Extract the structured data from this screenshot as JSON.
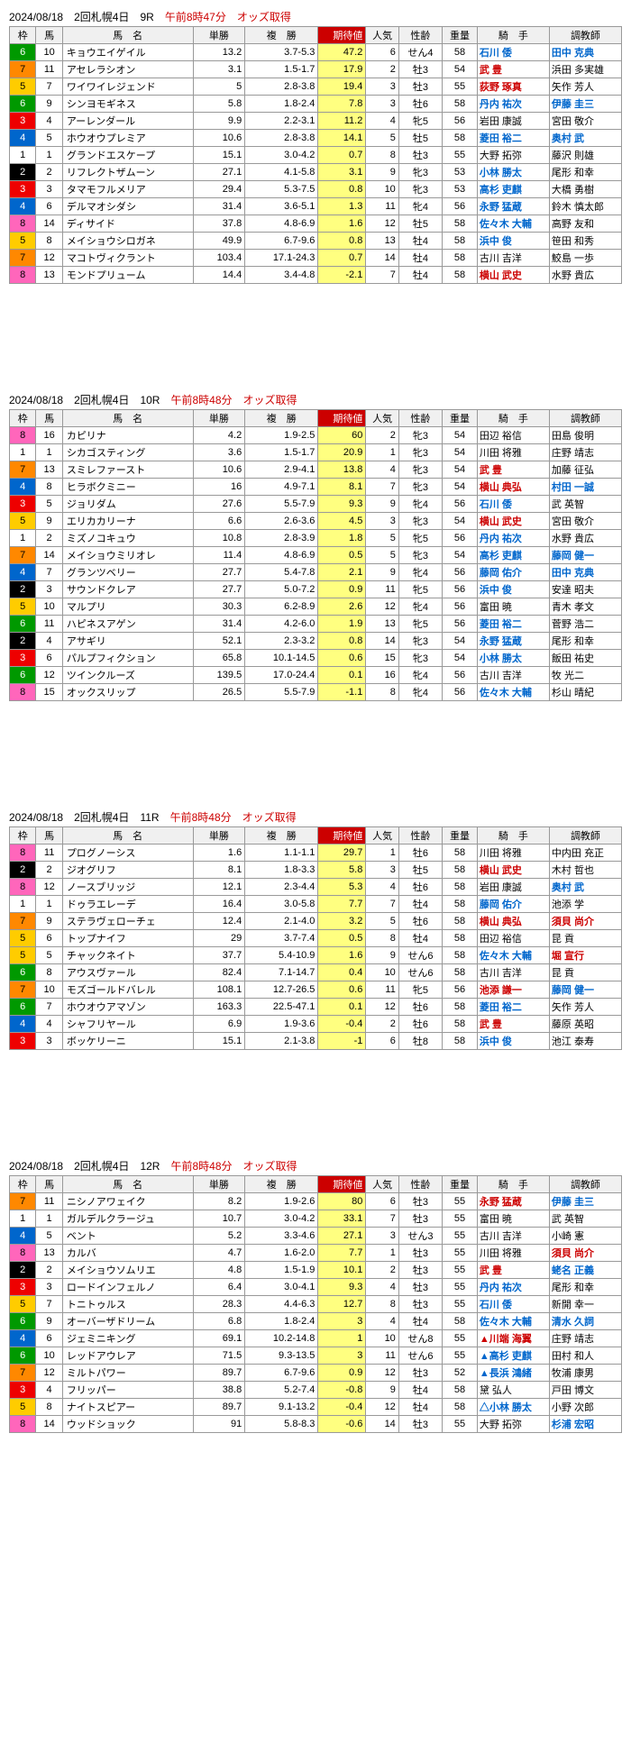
{
  "races": [
    {
      "header": {
        "date": "2024/08/18",
        "meet": "2回札幌4日",
        "race": "9R",
        "time": "午前8時47分",
        "label": "オッズ取得"
      },
      "rows": [
        {
          "waku": 6,
          "uma": 10,
          "name": "キョウエイゲイル",
          "tansho": "13.2",
          "fukusho": "3.7-5.3",
          "expect": "47.2",
          "ninki": 6,
          "seirei": "せん4",
          "juryo": 58,
          "kishu": "石川 倭",
          "choukyou": "田中 克典",
          "kh": 1,
          "ch": 1
        },
        {
          "waku": 7,
          "uma": 11,
          "name": "アセレラシオン",
          "tansho": "3.1",
          "fukusho": "1.5-1.7",
          "expect": "17.9",
          "ninki": 2,
          "seirei": "牡3",
          "juryo": 54,
          "kishu": "武 豊",
          "choukyou": "浜田 多実雄",
          "kh": 2
        },
        {
          "waku": 5,
          "uma": 7,
          "name": "ワイワイレジェンド",
          "tansho": "5",
          "fukusho": "2.8-3.8",
          "expect": "19.4",
          "ninki": 3,
          "seirei": "牡3",
          "juryo": 55,
          "kishu": "荻野 琢真",
          "choukyou": "矢作 芳人",
          "kh": 2
        },
        {
          "waku": 6,
          "uma": 9,
          "name": "シンヨモギネス",
          "tansho": "5.8",
          "fukusho": "1.8-2.4",
          "expect": "7.8",
          "ninki": 3,
          "seirei": "牡6",
          "juryo": 58,
          "kishu": "丹内 祐次",
          "choukyou": "伊藤 圭三",
          "kh": 1,
          "ch": 1
        },
        {
          "waku": 3,
          "uma": 4,
          "name": "アーレンダール",
          "tansho": "9.9",
          "fukusho": "2.2-3.1",
          "expect": "11.2",
          "ninki": 4,
          "seirei": "牝5",
          "juryo": 56,
          "kishu": "岩田 康誠",
          "choukyou": "宮田 敬介"
        },
        {
          "waku": 4,
          "uma": 5,
          "name": "ホウオウプレミア",
          "tansho": "10.6",
          "fukusho": "2.8-3.8",
          "expect": "14.1",
          "ninki": 5,
          "seirei": "牡5",
          "juryo": 58,
          "kishu": "菱田 裕二",
          "choukyou": "奥村 武",
          "kh": 1,
          "ch": 1
        },
        {
          "waku": 1,
          "uma": 1,
          "name": "グランドエスケープ",
          "tansho": "15.1",
          "fukusho": "3.0-4.2",
          "expect": "0.7",
          "ninki": 8,
          "seirei": "牡3",
          "juryo": 55,
          "kishu": "大野 拓弥",
          "choukyou": "藤沢 則雄"
        },
        {
          "waku": 2,
          "uma": 2,
          "name": "リフレクトザムーン",
          "tansho": "27.1",
          "fukusho": "4.1-5.8",
          "expect": "3.1",
          "ninki": 9,
          "seirei": "牝3",
          "juryo": 53,
          "kishu": "小林 勝太",
          "choukyou": "尾形 和幸",
          "kh": 1
        },
        {
          "waku": 3,
          "uma": 3,
          "name": "タマモフルメリア",
          "tansho": "29.4",
          "fukusho": "5.3-7.5",
          "expect": "0.8",
          "ninki": 10,
          "seirei": "牝3",
          "juryo": 53,
          "kishu": "高杉 吏麒",
          "choukyou": "大橋 勇樹",
          "kh": 1
        },
        {
          "waku": 4,
          "uma": 6,
          "name": "デルマオシダシ",
          "tansho": "31.4",
          "fukusho": "3.6-5.1",
          "expect": "1.3",
          "ninki": 11,
          "seirei": "牝4",
          "juryo": 56,
          "kishu": "永野 猛蔵",
          "choukyou": "鈴木 慎太郎",
          "kh": 1
        },
        {
          "waku": 8,
          "uma": 14,
          "name": "ディサイド",
          "tansho": "37.8",
          "fukusho": "4.8-6.9",
          "expect": "1.6",
          "ninki": 12,
          "seirei": "牡5",
          "juryo": 58,
          "kishu": "佐々木 大輔",
          "choukyou": "高野 友和",
          "kh": 1
        },
        {
          "waku": 5,
          "uma": 8,
          "name": "メイショウシロガネ",
          "tansho": "49.9",
          "fukusho": "6.7-9.6",
          "expect": "0.8",
          "ninki": 13,
          "seirei": "牡4",
          "juryo": 58,
          "kishu": "浜中 俊",
          "choukyou": "笹田 和秀",
          "kh": 1
        },
        {
          "waku": 7,
          "uma": 12,
          "name": "マコトヴィクラント",
          "tansho": "103.4",
          "fukusho": "17.1-24.3",
          "expect": "0.7",
          "ninki": 14,
          "seirei": "牡4",
          "juryo": 58,
          "kishu": "古川 吉洋",
          "choukyou": "鮫島 一歩"
        },
        {
          "waku": 8,
          "uma": 13,
          "name": "モンドプリューム",
          "tansho": "14.4",
          "fukusho": "3.4-4.8",
          "expect": "-2.1",
          "ninki": 7,
          "seirei": "牡4",
          "juryo": 58,
          "kishu": "横山 武史",
          "choukyou": "水野 貴広",
          "kh": 2
        }
      ]
    },
    {
      "header": {
        "date": "2024/08/18",
        "meet": "2回札幌4日",
        "race": "10R",
        "time": "午前8時48分",
        "label": "オッズ取得"
      },
      "rows": [
        {
          "waku": 8,
          "uma": 16,
          "name": "カピリナ",
          "tansho": "4.2",
          "fukusho": "1.9-2.5",
          "expect": "60",
          "ninki": 2,
          "seirei": "牝3",
          "juryo": 54,
          "kishu": "田辺 裕信",
          "choukyou": "田島 俊明"
        },
        {
          "waku": 1,
          "uma": 1,
          "name": "シカゴスティング",
          "tansho": "3.6",
          "fukusho": "1.5-1.7",
          "expect": "20.9",
          "ninki": 1,
          "seirei": "牝3",
          "juryo": 54,
          "kishu": "川田 将雅",
          "choukyou": "庄野 靖志"
        },
        {
          "waku": 7,
          "uma": 13,
          "name": "スミレファースト",
          "tansho": "10.6",
          "fukusho": "2.9-4.1",
          "expect": "13.8",
          "ninki": 4,
          "seirei": "牝3",
          "juryo": 54,
          "kishu": "武 豊",
          "choukyou": "加藤 征弘",
          "kh": 2
        },
        {
          "waku": 4,
          "uma": 8,
          "name": "ヒラボクミニー",
          "tansho": "16",
          "fukusho": "4.9-7.1",
          "expect": "8.1",
          "ninki": 7,
          "seirei": "牝3",
          "juryo": 54,
          "kishu": "横山 典弘",
          "choukyou": "村田 一誠",
          "kh": 2,
          "ch": 1
        },
        {
          "waku": 3,
          "uma": 5,
          "name": "ジョリダム",
          "tansho": "27.6",
          "fukusho": "5.5-7.9",
          "expect": "9.3",
          "ninki": 9,
          "seirei": "牝4",
          "juryo": 56,
          "kishu": "石川 倭",
          "choukyou": "武 英智",
          "kh": 1
        },
        {
          "waku": 5,
          "uma": 9,
          "name": "エリカカリーナ",
          "tansho": "6.6",
          "fukusho": "2.6-3.6",
          "expect": "4.5",
          "ninki": 3,
          "seirei": "牝3",
          "juryo": 54,
          "kishu": "横山 武史",
          "choukyou": "宮田 敬介",
          "kh": 2
        },
        {
          "waku": 1,
          "uma": 2,
          "name": "ミズノコキュウ",
          "tansho": "10.8",
          "fukusho": "2.8-3.9",
          "expect": "1.8",
          "ninki": 5,
          "seirei": "牝5",
          "juryo": 56,
          "kishu": "丹内 祐次",
          "choukyou": "水野 貴広",
          "kh": 1
        },
        {
          "waku": 7,
          "uma": 14,
          "name": "メイショウミリオレ",
          "tansho": "11.4",
          "fukusho": "4.8-6.9",
          "expect": "0.5",
          "ninki": 5,
          "seirei": "牝3",
          "juryo": 54,
          "kishu": "高杉 吏麒",
          "choukyou": "藤岡 健一",
          "kh": 1,
          "ch": 1
        },
        {
          "waku": 4,
          "uma": 7,
          "name": "グランツベリー",
          "tansho": "27.7",
          "fukusho": "5.4-7.8",
          "expect": "2.1",
          "ninki": 9,
          "seirei": "牝4",
          "juryo": 56,
          "kishu": "藤岡 佑介",
          "choukyou": "田中 克典",
          "kh": 1,
          "ch": 1
        },
        {
          "waku": 2,
          "uma": 3,
          "name": "サウンドクレア",
          "tansho": "27.7",
          "fukusho": "5.0-7.2",
          "expect": "0.9",
          "ninki": 11,
          "seirei": "牝5",
          "juryo": 56,
          "kishu": "浜中 俊",
          "choukyou": "安達 昭夫",
          "kh": 1
        },
        {
          "waku": 5,
          "uma": 10,
          "name": "マルプリ",
          "tansho": "30.3",
          "fukusho": "6.2-8.9",
          "expect": "2.6",
          "ninki": 12,
          "seirei": "牝4",
          "juryo": 56,
          "kishu": "富田 暁",
          "choukyou": "青木 孝文"
        },
        {
          "waku": 6,
          "uma": 11,
          "name": "ハピネスアゲン",
          "tansho": "31.4",
          "fukusho": "4.2-6.0",
          "expect": "1.9",
          "ninki": 13,
          "seirei": "牝5",
          "juryo": 56,
          "kishu": "菱田 裕二",
          "choukyou": "菅野 浩二",
          "kh": 1
        },
        {
          "waku": 2,
          "uma": 4,
          "name": "アサギリ",
          "tansho": "52.1",
          "fukusho": "2.3-3.2",
          "expect": "0.8",
          "ninki": 14,
          "seirei": "牝3",
          "juryo": 54,
          "kishu": "永野 猛蔵",
          "choukyou": "尾形 和幸",
          "kh": 1
        },
        {
          "waku": 3,
          "uma": 6,
          "name": "パルプフィクション",
          "tansho": "65.8",
          "fukusho": "10.1-14.5",
          "expect": "0.6",
          "ninki": 15,
          "seirei": "牝3",
          "juryo": 54,
          "kishu": "小林 勝太",
          "choukyou": "飯田 祐史",
          "kh": 1
        },
        {
          "waku": 6,
          "uma": 12,
          "name": "ツインクルーズ",
          "tansho": "139.5",
          "fukusho": "17.0-24.4",
          "expect": "0.1",
          "ninki": 16,
          "seirei": "牝4",
          "juryo": 56,
          "kishu": "古川 吉洋",
          "choukyou": "牧 光二"
        },
        {
          "waku": 8,
          "uma": 15,
          "name": "オックスリップ",
          "tansho": "26.5",
          "fukusho": "5.5-7.9",
          "expect": "-1.1",
          "ninki": 8,
          "seirei": "牝4",
          "juryo": 56,
          "kishu": "佐々木 大輔",
          "choukyou": "杉山 晴紀",
          "kh": 1
        }
      ]
    },
    {
      "header": {
        "date": "2024/08/18",
        "meet": "2回札幌4日",
        "race": "11R",
        "time": "午前8時48分",
        "label": "オッズ取得"
      },
      "rows": [
        {
          "waku": 8,
          "uma": 11,
          "name": "プログノーシス",
          "tansho": "1.6",
          "fukusho": "1.1-1.1",
          "expect": "29.7",
          "ninki": 1,
          "seirei": "牡6",
          "juryo": 58,
          "kishu": "川田 将雅",
          "choukyou": "中内田 充正"
        },
        {
          "waku": 2,
          "uma": 2,
          "name": "ジオグリフ",
          "tansho": "8.1",
          "fukusho": "1.8-3.3",
          "expect": "5.8",
          "ninki": 3,
          "seirei": "牡5",
          "juryo": 58,
          "kishu": "横山 武史",
          "choukyou": "木村 哲也",
          "kh": 2
        },
        {
          "waku": 8,
          "uma": 12,
          "name": "ノースブリッジ",
          "tansho": "12.1",
          "fukusho": "2.3-4.4",
          "expect": "5.3",
          "ninki": 4,
          "seirei": "牡6",
          "juryo": 58,
          "kishu": "岩田 康誠",
          "choukyou": "奥村 武",
          "ch": 1
        },
        {
          "waku": 1,
          "uma": 1,
          "name": "ドゥラエレーデ",
          "tansho": "16.4",
          "fukusho": "3.0-5.8",
          "expect": "7.7",
          "ninki": 7,
          "seirei": "牡4",
          "juryo": 58,
          "kishu": "藤岡 佑介",
          "choukyou": "池添 学",
          "kh": 1
        },
        {
          "waku": 7,
          "uma": 9,
          "name": "ステラヴェローチェ",
          "tansho": "12.4",
          "fukusho": "2.1-4.0",
          "expect": "3.2",
          "ninki": 5,
          "seirei": "牡6",
          "juryo": 58,
          "kishu": "横山 典弘",
          "choukyou": "須貝 尚介",
          "kh": 2,
          "ch": 2
        },
        {
          "waku": 5,
          "uma": 6,
          "name": "トップナイフ",
          "tansho": "29",
          "fukusho": "3.7-7.4",
          "expect": "0.5",
          "ninki": 8,
          "seirei": "牡4",
          "juryo": 58,
          "kishu": "田辺 裕信",
          "choukyou": "昆 貢"
        },
        {
          "waku": 5,
          "uma": 5,
          "name": "チャックネイト",
          "tansho": "37.7",
          "fukusho": "5.4-10.9",
          "expect": "1.6",
          "ninki": 9,
          "seirei": "せん6",
          "juryo": 58,
          "kishu": "佐々木 大輔",
          "choukyou": "堀 宣行",
          "kh": 1,
          "ch": 2
        },
        {
          "waku": 6,
          "uma": 8,
          "name": "アウスヴァール",
          "tansho": "82.4",
          "fukusho": "7.1-14.7",
          "expect": "0.4",
          "ninki": 10,
          "seirei": "せん6",
          "juryo": 58,
          "kishu": "古川 吉洋",
          "choukyou": "昆 貢"
        },
        {
          "waku": 7,
          "uma": 10,
          "name": "モズゴールドバレル",
          "tansho": "108.1",
          "fukusho": "12.7-26.5",
          "expect": "0.6",
          "ninki": 11,
          "seirei": "牝5",
          "juryo": 56,
          "kishu": "池添 謙一",
          "choukyou": "藤岡 健一",
          "kh": 2,
          "ch": 1
        },
        {
          "waku": 6,
          "uma": 7,
          "name": "ホウオウアマゾン",
          "tansho": "163.3",
          "fukusho": "22.5-47.1",
          "expect": "0.1",
          "ninki": 12,
          "seirei": "牡6",
          "juryo": 58,
          "kishu": "菱田 裕二",
          "choukyou": "矢作 芳人",
          "kh": 1
        },
        {
          "waku": 4,
          "uma": 4,
          "name": "シャフリヤール",
          "tansho": "6.9",
          "fukusho": "1.9-3.6",
          "expect": "-0.4",
          "ninki": 2,
          "seirei": "牡6",
          "juryo": 58,
          "kishu": "武 豊",
          "choukyou": "藤原 英昭",
          "kh": 2
        },
        {
          "waku": 3,
          "uma": 3,
          "name": "ボッケリーニ",
          "tansho": "15.1",
          "fukusho": "2.1-3.8",
          "expect": "-1",
          "ninki": 6,
          "seirei": "牡8",
          "juryo": 58,
          "kishu": "浜中 俊",
          "choukyou": "池江 泰寿",
          "kh": 1
        }
      ]
    },
    {
      "header": {
        "date": "2024/08/18",
        "meet": "2回札幌4日",
        "race": "12R",
        "time": "午前8時48分",
        "label": "オッズ取得"
      },
      "rows": [
        {
          "waku": 7,
          "uma": 11,
          "name": "ニシノアワェイク",
          "tansho": "8.2",
          "fukusho": "1.9-2.6",
          "expect": "80",
          "ninki": 6,
          "seirei": "牡3",
          "juryo": 55,
          "kishu": "永野 猛蔵",
          "choukyou": "伊藤 圭三",
          "kh": 2,
          "ch": 1
        },
        {
          "waku": 1,
          "uma": 1,
          "name": "ガルデルクラージュ",
          "tansho": "10.7",
          "fukusho": "3.0-4.2",
          "expect": "33.1",
          "ninki": 7,
          "seirei": "牡3",
          "juryo": 55,
          "kishu": "富田 暁",
          "choukyou": "武 英智"
        },
        {
          "waku": 4,
          "uma": 5,
          "name": "ベント",
          "tansho": "5.2",
          "fukusho": "3.3-4.6",
          "expect": "27.1",
          "ninki": 3,
          "seirei": "せん3",
          "juryo": 55,
          "kishu": "古川 吉洋",
          "choukyou": "小崎 憲"
        },
        {
          "waku": 8,
          "uma": 13,
          "name": "カルバ",
          "tansho": "4.7",
          "fukusho": "1.6-2.0",
          "expect": "7.7",
          "ninki": 1,
          "seirei": "牡3",
          "juryo": 55,
          "kishu": "川田 将雅",
          "choukyou": "須貝 尚介",
          "ch": 2
        },
        {
          "waku": 2,
          "uma": 2,
          "name": "メイショウソムリエ",
          "tansho": "4.8",
          "fukusho": "1.5-1.9",
          "expect": "10.1",
          "ninki": 2,
          "seirei": "牡3",
          "juryo": 55,
          "kishu": "武 豊",
          "choukyou": "蛯名 正義",
          "kh": 2,
          "ch": 1
        },
        {
          "waku": 3,
          "uma": 3,
          "name": "ロードインフェルノ",
          "tansho": "6.4",
          "fukusho": "3.0-4.1",
          "expect": "9.3",
          "ninki": 4,
          "seirei": "牡3",
          "juryo": 55,
          "kishu": "丹内 祐次",
          "choukyou": "尾形 和幸",
          "kh": 1
        },
        {
          "waku": 5,
          "uma": 7,
          "name": "トニトゥルス",
          "tansho": "28.3",
          "fukusho": "4.4-6.3",
          "expect": "12.7",
          "ninki": 8,
          "seirei": "牡3",
          "juryo": 55,
          "kishu": "石川 倭",
          "choukyou": "新開 幸一",
          "kh": 1
        },
        {
          "waku": 6,
          "uma": 9,
          "name": "オーバーザドリーム",
          "tansho": "6.8",
          "fukusho": "1.8-2.4",
          "expect": "3",
          "ninki": 4,
          "seirei": "牡4",
          "juryo": 58,
          "kishu": "佐々木 大輔",
          "choukyou": "清水 久詞",
          "kh": 1,
          "ch": 1
        },
        {
          "waku": 4,
          "uma": 6,
          "name": "ジェミニキング",
          "tansho": "69.1",
          "fukusho": "10.2-14.8",
          "expect": "1",
          "ninki": 10,
          "seirei": "せん8",
          "juryo": 55,
          "kishu": "▲川端 海翼",
          "choukyou": "庄野 靖志",
          "kh": 2
        },
        {
          "waku": 6,
          "uma": 10,
          "name": "レッドアウレア",
          "tansho": "71.5",
          "fukusho": "9.3-13.5",
          "expect": "3",
          "ninki": 11,
          "seirei": "せん6",
          "juryo": 55,
          "kishu": "▲高杉 吏麒",
          "choukyou": "田村 和人",
          "kh": 1
        },
        {
          "waku": 7,
          "uma": 12,
          "name": "ミルトパワー",
          "tansho": "89.7",
          "fukusho": "6.7-9.6",
          "expect": "0.9",
          "ninki": 12,
          "seirei": "牡3",
          "juryo": 52,
          "kishu": "▲長浜 鴻緒",
          "choukyou": "牧浦 康男",
          "kh": 1
        },
        {
          "waku": 3,
          "uma": 4,
          "name": "フリッパー",
          "tansho": "38.8",
          "fukusho": "5.2-7.4",
          "expect": "-0.8",
          "ninki": 9,
          "seirei": "牡4",
          "juryo": 58,
          "kishu": "黛 弘人",
          "choukyou": "戸田 博文"
        },
        {
          "waku": 5,
          "uma": 8,
          "name": "ナイトスピアー",
          "tansho": "89.7",
          "fukusho": "9.1-13.2",
          "expect": "-0.4",
          "ninki": 12,
          "seirei": "牡4",
          "juryo": 58,
          "kishu": "△小林 勝太",
          "choukyou": "小野 次郎",
          "kh": 1
        },
        {
          "waku": 8,
          "uma": 14,
          "name": "ウッドショック",
          "tansho": "91",
          "fukusho": "5.8-8.3",
          "expect": "-0.6",
          "ninki": 14,
          "seirei": "牡3",
          "juryo": 55,
          "kishu": "大野 拓弥",
          "choukyou": "杉浦 宏昭",
          "ch": 1
        }
      ]
    }
  ],
  "columns": [
    "枠",
    "馬",
    "馬　名",
    "単勝",
    "複　勝",
    "期待値",
    "人気",
    "性齢",
    "重量",
    "騎　手",
    "調教師"
  ]
}
